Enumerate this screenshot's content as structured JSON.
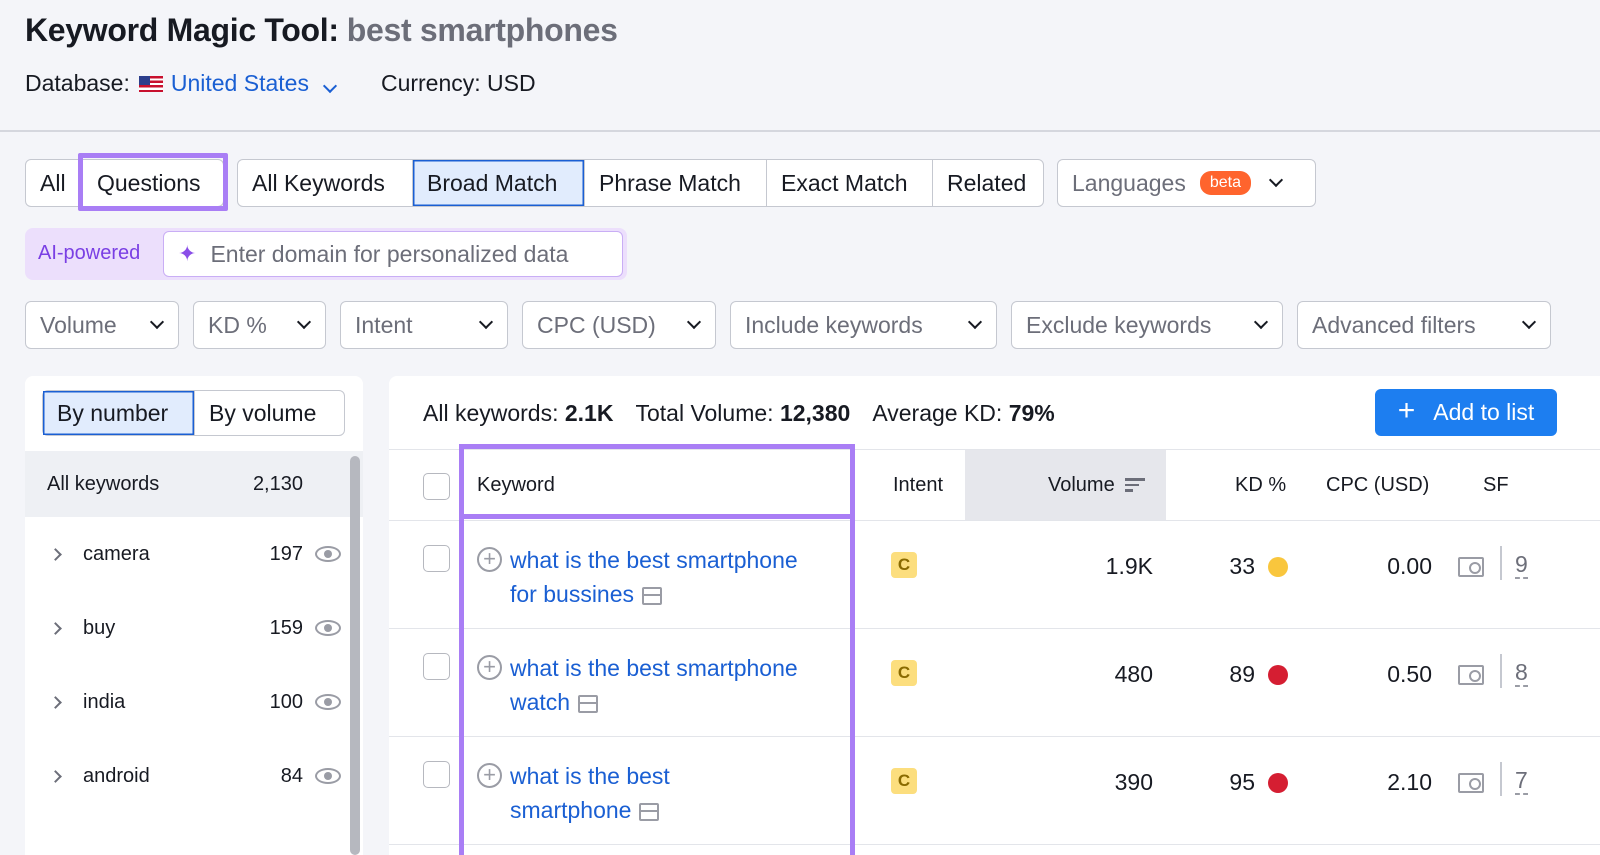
{
  "header": {
    "title": "Keyword Magic Tool:",
    "query": "best smartphones",
    "database_label": "Database:",
    "database_value": "United States",
    "currency": "Currency: USD"
  },
  "tabs_type": [
    "All",
    "Questions"
  ],
  "tabs_match": [
    "All Keywords",
    "Broad Match",
    "Phrase Match",
    "Exact Match",
    "Related"
  ],
  "languages": {
    "label": "Languages",
    "badge": "beta"
  },
  "ai": {
    "label": "AI-powered",
    "placeholder": "Enter domain for personalized data"
  },
  "filters": [
    "Volume",
    "KD %",
    "Intent",
    "CPC (USD)",
    "Include keywords",
    "Exclude keywords",
    "Advanced filters"
  ],
  "sidebar": {
    "toggle": [
      "By number",
      "By volume"
    ],
    "all_label": "All keywords",
    "all_count": "2,130",
    "groups": [
      {
        "name": "camera",
        "count": "197"
      },
      {
        "name": "buy",
        "count": "159"
      },
      {
        "name": "india",
        "count": "100"
      },
      {
        "name": "android",
        "count": "84"
      }
    ]
  },
  "summary": {
    "all_label": "All keywords:",
    "all_value": "2.1K",
    "volume_label": "Total Volume:",
    "volume_value": "12,380",
    "kd_label": "Average KD:",
    "kd_value": "79%"
  },
  "add_button": "Add to list",
  "table": {
    "headers": [
      "Keyword",
      "Intent",
      "Volume",
      "KD %",
      "CPC (USD)",
      "SF"
    ],
    "rows": [
      {
        "line1": "what is the best smartphone",
        "line2": "for bussines",
        "intent": "C",
        "volume": "1.9K",
        "kd": "33",
        "kd_color": "#f9c63d",
        "cpc": "0.00",
        "sf": "9"
      },
      {
        "line1": "what is the best smartphone",
        "line2": "watch",
        "intent": "C",
        "volume": "480",
        "kd": "89",
        "kd_color": "#d51e32",
        "cpc": "0.50",
        "sf": "8"
      },
      {
        "line1": "what is the best",
        "line2": "smartphone",
        "intent": "C",
        "volume": "390",
        "kd": "95",
        "kd_color": "#d51e32",
        "cpc": "2.10",
        "sf": "7"
      }
    ]
  },
  "colors": {
    "highlight": "#a97ef5",
    "accent": "#1d7ef0"
  }
}
